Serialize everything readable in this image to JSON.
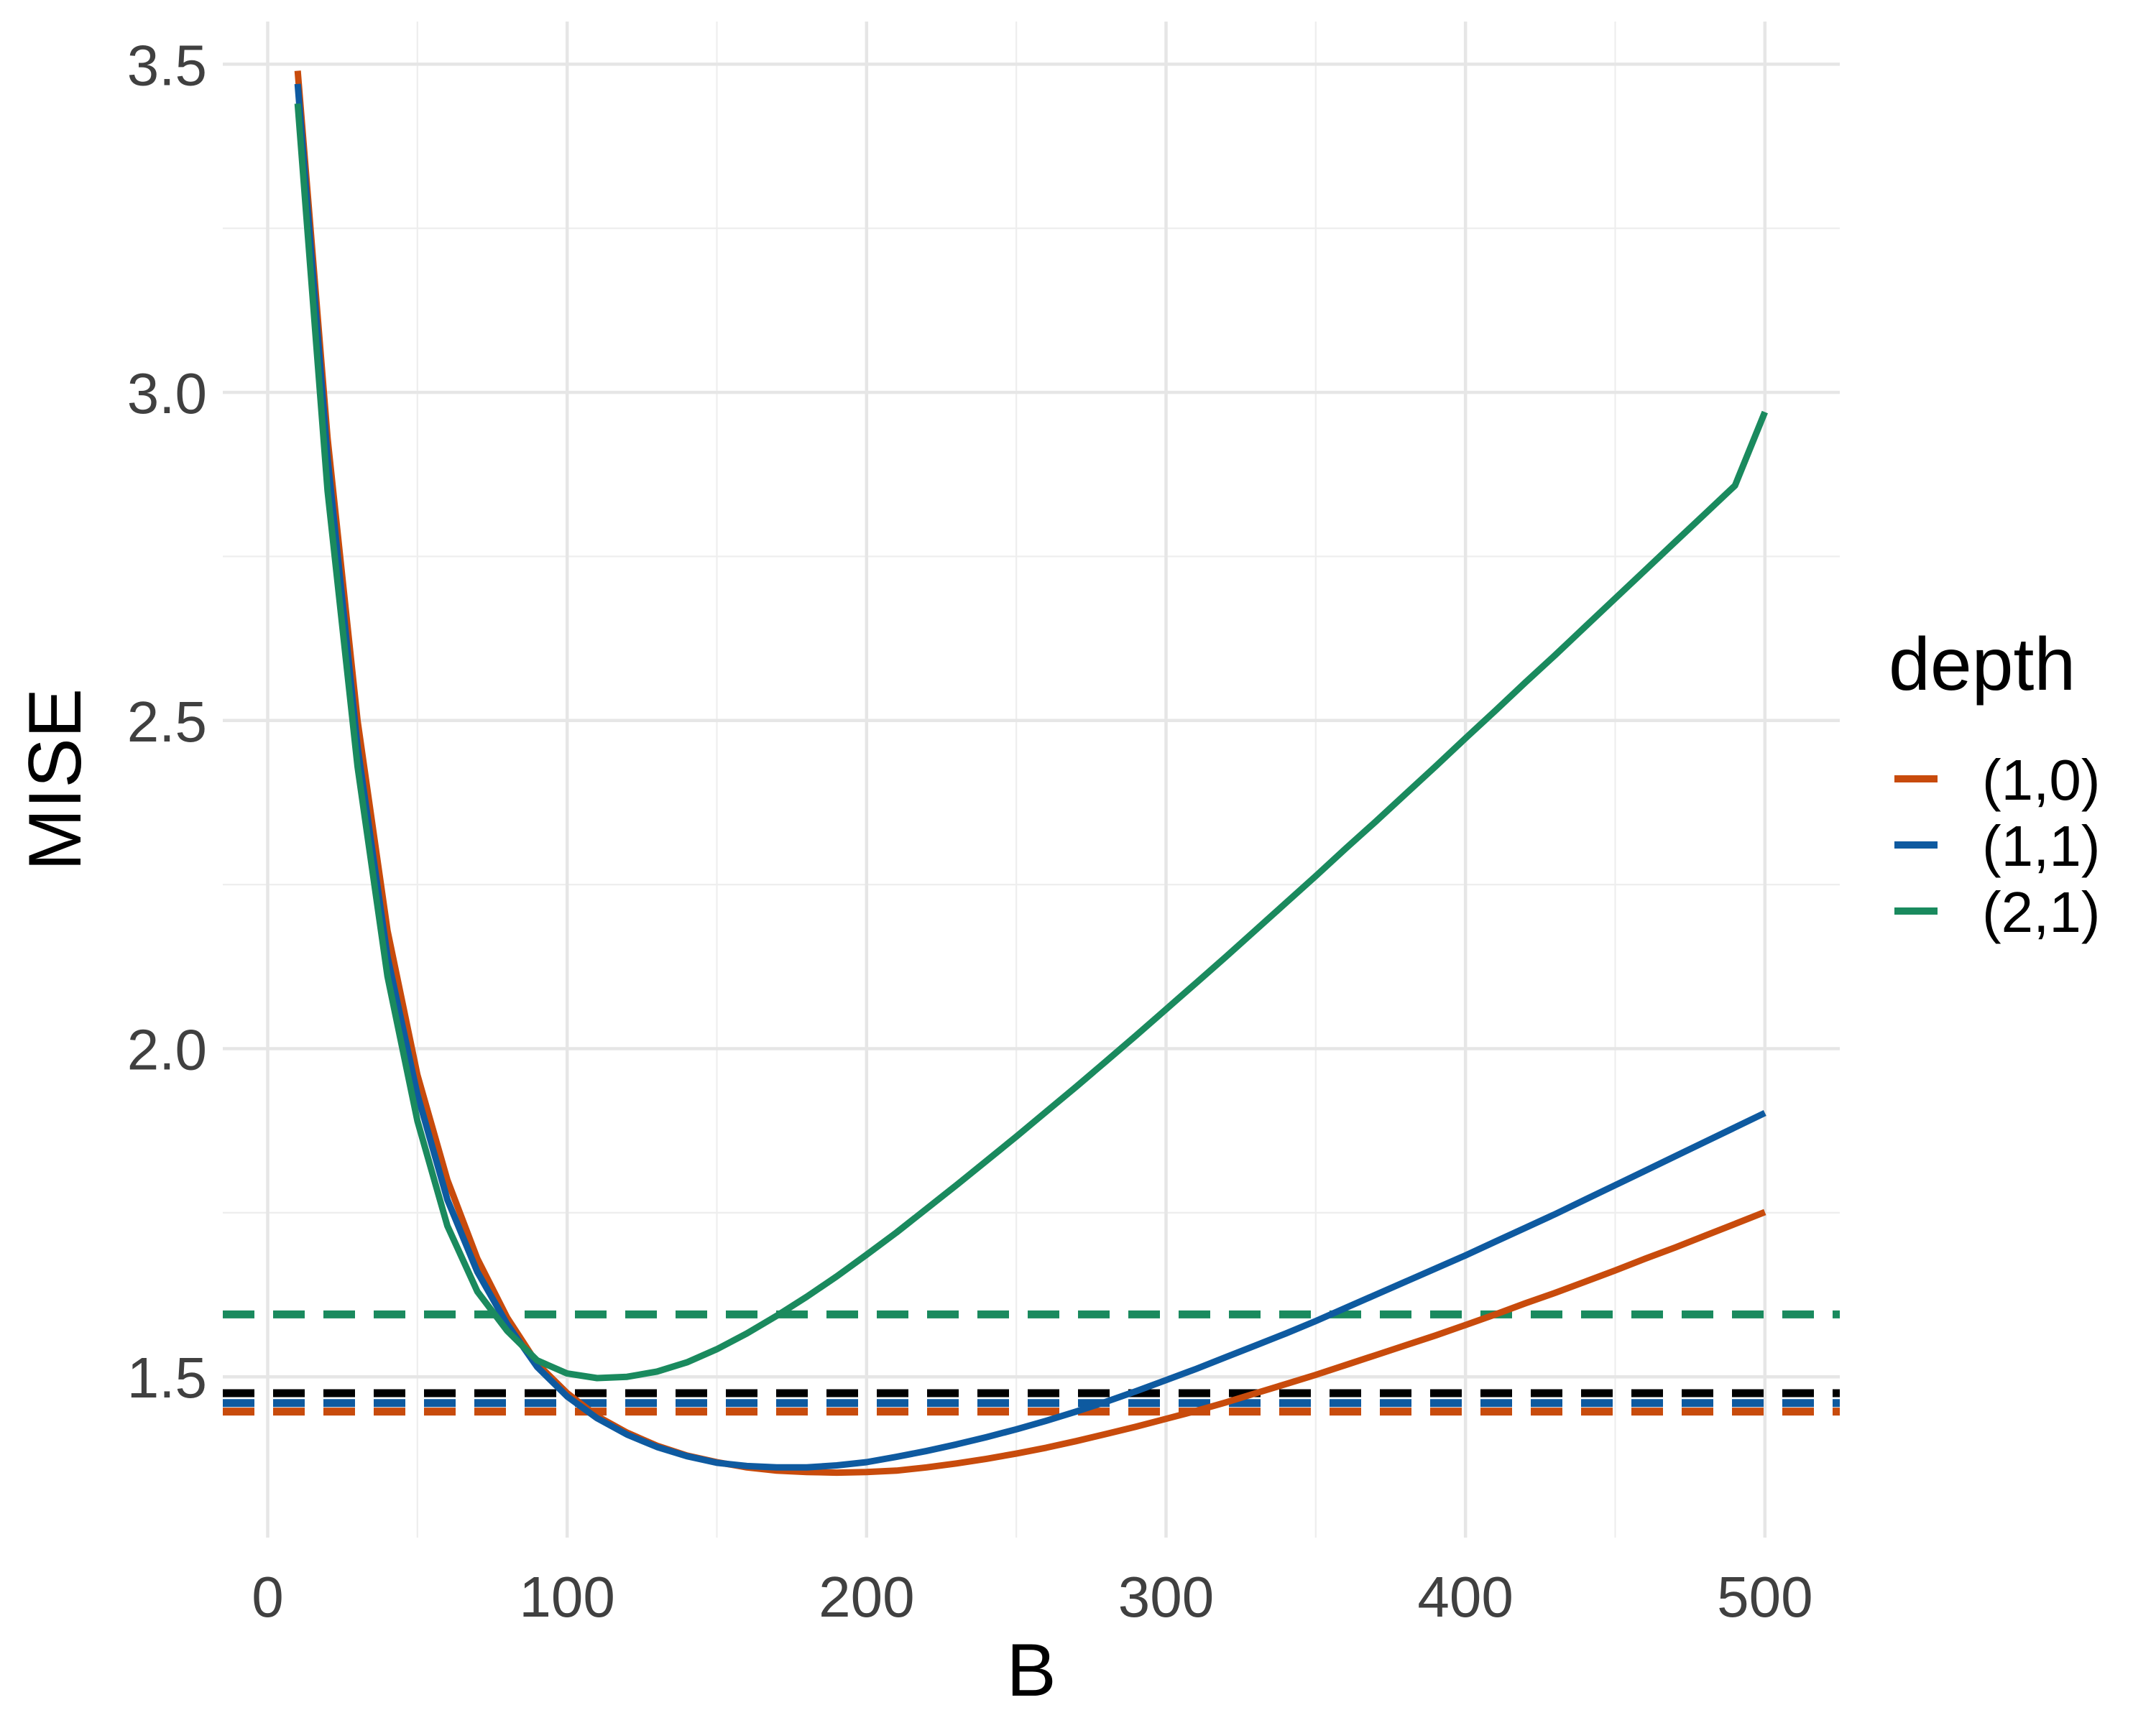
{
  "chart_data": {
    "type": "line",
    "title": "",
    "xlabel": "B",
    "ylabel": "MISE",
    "xlim": [
      -15,
      525
    ],
    "ylim": [
      1.255,
      3.565
    ],
    "x_ticks": [
      0,
      100,
      200,
      300,
      400,
      500
    ],
    "x_tick_labels": [
      "0",
      "100",
      "200",
      "300",
      "400",
      "500"
    ],
    "y_ticks": [
      1.5,
      2.0,
      2.5,
      3.0,
      3.5
    ],
    "y_tick_labels": [
      "1.5",
      "2.0",
      "2.5",
      "3.0",
      "3.5"
    ],
    "grid": true,
    "legend": {
      "title": "depth",
      "position": "right"
    },
    "series": [
      {
        "name": "(1,0)",
        "color": "#c84b0c",
        "x": [
          10,
          20,
          30,
          40,
          50,
          60,
          70,
          80,
          90,
          100,
          110,
          120,
          130,
          140,
          150,
          160,
          170,
          180,
          190,
          200,
          210,
          220,
          230,
          240,
          250,
          260,
          270,
          280,
          290,
          300,
          310,
          320,
          330,
          340,
          350,
          360,
          370,
          380,
          390,
          400,
          410,
          420,
          430,
          440,
          450,
          460,
          470,
          480,
          490,
          500
        ],
        "y": [
          3.49,
          2.93,
          2.5,
          2.18,
          1.96,
          1.8,
          1.68,
          1.59,
          1.52,
          1.475,
          1.44,
          1.415,
          1.395,
          1.38,
          1.37,
          1.362,
          1.357,
          1.355,
          1.354,
          1.355,
          1.357,
          1.362,
          1.368,
          1.375,
          1.383,
          1.392,
          1.402,
          1.413,
          1.424,
          1.436,
          1.448,
          1.461,
          1.475,
          1.489,
          1.503,
          1.518,
          1.533,
          1.548,
          1.563,
          1.579,
          1.595,
          1.612,
          1.628,
          1.645,
          1.662,
          1.68,
          1.697,
          1.715,
          1.733,
          1.751
        ]
      },
      {
        "name": "(1,1)",
        "color": "#0e5aa0",
        "x": [
          10,
          20,
          30,
          40,
          50,
          60,
          70,
          80,
          90,
          100,
          110,
          120,
          130,
          140,
          150,
          160,
          170,
          180,
          190,
          200,
          210,
          220,
          230,
          240,
          250,
          260,
          270,
          280,
          290,
          300,
          310,
          320,
          330,
          340,
          350,
          360,
          370,
          380,
          390,
          400,
          410,
          420,
          430,
          440,
          450,
          460,
          470,
          480,
          490,
          500
        ],
        "y": [
          3.47,
          2.9,
          2.46,
          2.14,
          1.93,
          1.77,
          1.66,
          1.58,
          1.515,
          1.47,
          1.437,
          1.412,
          1.393,
          1.379,
          1.369,
          1.364,
          1.362,
          1.362,
          1.365,
          1.37,
          1.378,
          1.387,
          1.397,
          1.408,
          1.42,
          1.433,
          1.447,
          1.462,
          1.478,
          1.495,
          1.512,
          1.53,
          1.548,
          1.566,
          1.585,
          1.605,
          1.625,
          1.645,
          1.665,
          1.685,
          1.706,
          1.727,
          1.748,
          1.77,
          1.792,
          1.814,
          1.836,
          1.858,
          1.88,
          1.902
        ]
      },
      {
        "name": "(2,1)",
        "color": "#1a8a5e",
        "x": [
          10,
          20,
          30,
          40,
          50,
          60,
          70,
          80,
          90,
          100,
          110,
          120,
          130,
          140,
          150,
          160,
          170,
          180,
          190,
          200,
          210,
          220,
          230,
          240,
          250,
          260,
          270,
          280,
          290,
          300,
          310,
          320,
          330,
          340,
          350,
          360,
          370,
          380,
          390,
          400,
          410,
          420,
          430,
          440,
          450,
          460,
          470,
          480,
          490,
          500
        ],
        "y": [
          3.44,
          2.85,
          2.43,
          2.11,
          1.89,
          1.73,
          1.63,
          1.57,
          1.525,
          1.505,
          1.498,
          1.5,
          1.508,
          1.522,
          1.542,
          1.566,
          1.593,
          1.622,
          1.653,
          1.686,
          1.72,
          1.756,
          1.792,
          1.829,
          1.866,
          1.904,
          1.942,
          1.981,
          2.02,
          2.06,
          2.1,
          2.14,
          2.181,
          2.222,
          2.263,
          2.305,
          2.346,
          2.388,
          2.43,
          2.473,
          2.515,
          2.558,
          2.6,
          2.643,
          2.686,
          2.729,
          2.772,
          2.815,
          2.858,
          2.97
        ]
      }
    ],
    "reference_lines": [
      {
        "y": 1.595,
        "color": "#1a8a5e",
        "style": "dashed"
      },
      {
        "y": 1.475,
        "color": "#000000",
        "style": "dashed"
      },
      {
        "y": 1.46,
        "color": "#0e5aa0",
        "style": "dashed"
      },
      {
        "y": 1.447,
        "color": "#c84b0c",
        "style": "dashed"
      }
    ]
  }
}
